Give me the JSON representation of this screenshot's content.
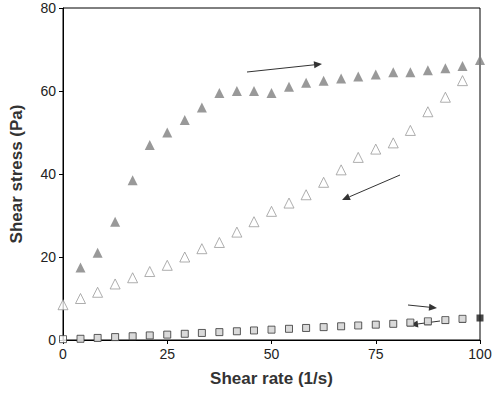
{
  "chart_data": {
    "type": "scatter",
    "xlabel": "Shear rate (1/s)",
    "ylabel": "Shear stress (Pa)",
    "xlim": [
      0,
      100
    ],
    "xticks": [
      0,
      25,
      50,
      75,
      100
    ],
    "ylim": [
      0,
      80
    ],
    "yticks": [
      0,
      20,
      40,
      60,
      80
    ],
    "grid": false,
    "series": [
      {
        "color": "#7f7f7f",
        "marker": "triangle",
        "x": [
          4.2,
          8.3,
          12.5,
          16.7,
          20.8,
          25,
          29.2,
          33.3,
          37.5,
          41.7,
          45.8,
          50,
          54.2,
          58.3,
          62.5,
          66.7,
          70.8,
          75,
          79.2,
          83.3,
          87.5,
          91.7,
          95.8,
          100
        ],
        "values": [
          17.5,
          21,
          28.5,
          38.5,
          47,
          50,
          53,
          56,
          59.5,
          60,
          60,
          59.5,
          61,
          62,
          62.5,
          63,
          63.5,
          64,
          64.5,
          64.5,
          65,
          65.5,
          66,
          67.5
        ]
      },
      {
        "color": "#9a9a9a",
        "marker": "triangle-open",
        "x": [
          0,
          4.2,
          8.3,
          12.5,
          16.7,
          20.8,
          25,
          29.2,
          33.3,
          37.5,
          41.7,
          45.8,
          50,
          54.2,
          58.3,
          62.5,
          66.7,
          70.8,
          75,
          79.2,
          83.3,
          87.5,
          91.7,
          95.8
        ],
        "values": [
          8.5,
          10,
          11.5,
          13.5,
          15,
          16.5,
          18,
          20,
          22,
          23.5,
          26,
          28.5,
          31,
          33,
          35,
          38,
          41,
          44,
          46,
          47.5,
          50.5,
          55,
          58.5,
          62.5
        ]
      },
      {
        "color": "#1a1a1a",
        "marker": "square",
        "x": [
          4.2,
          8.3,
          12.5,
          16.7,
          20.8,
          25,
          29.2,
          33.3,
          37.5,
          41.7,
          45.8,
          50,
          54.2,
          58.3,
          62.5,
          66.7,
          70.8,
          75,
          79.2,
          83.3,
          87.5,
          91.7,
          95.8,
          100
        ],
        "values": [
          0.3,
          0.5,
          0.7,
          0.9,
          1.1,
          1.3,
          1.5,
          1.7,
          1.9,
          2.1,
          2.3,
          2.5,
          2.7,
          2.9,
          3.1,
          3.3,
          3.5,
          3.7,
          3.9,
          4.1,
          4.4,
          4.7,
          5,
          5.3
        ]
      },
      {
        "color": "#404040",
        "marker": "square-open",
        "x": [
          0,
          4.2,
          8.3,
          12.5,
          16.7,
          20.8,
          25,
          29.2,
          33.3,
          37.5,
          41.7,
          45.8,
          50,
          54.2,
          58.3,
          62.5,
          66.7,
          70.8,
          75,
          79.2,
          83.3,
          87.5,
          91.7,
          95.8
        ],
        "values": [
          0.2,
          0.3,
          0.5,
          0.7,
          0.9,
          1.1,
          1.3,
          1.5,
          1.7,
          1.9,
          2.1,
          2.3,
          2.5,
          2.7,
          2.9,
          3.1,
          3.3,
          3.5,
          3.7,
          3.9,
          4.2,
          4.5,
          4.8,
          5.1
        ]
      }
    ]
  }
}
